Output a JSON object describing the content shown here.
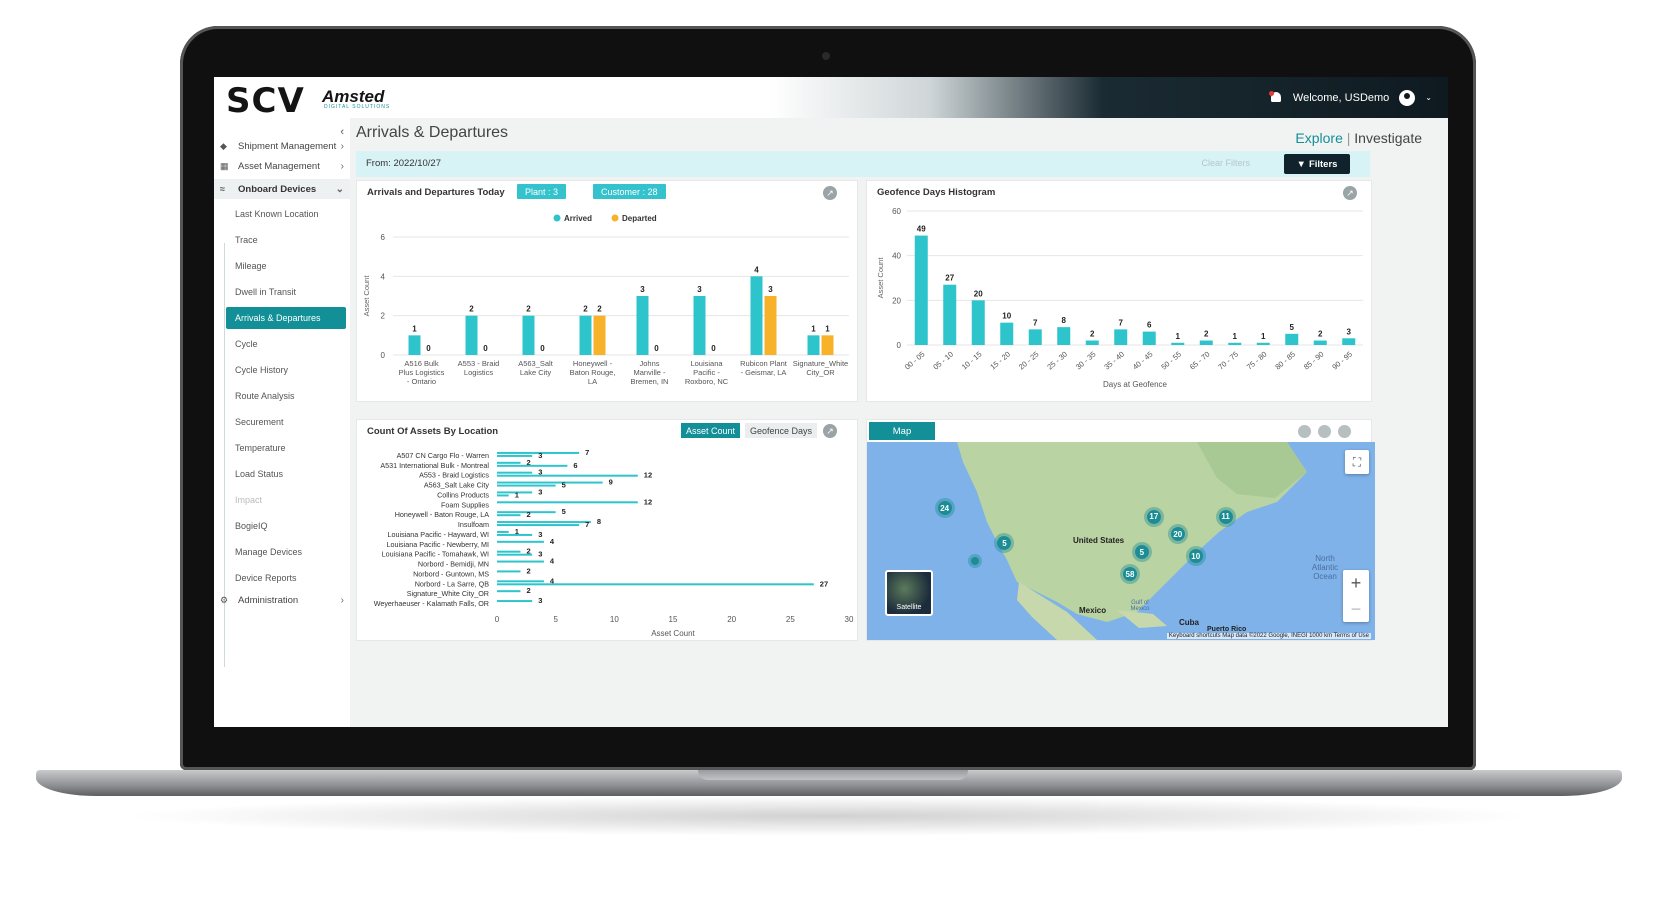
{
  "header": {
    "logo_scv": "SCV",
    "logo_amsted": "Amsted",
    "logo_amsted_sub": "DIGITAL SOLUTIONS",
    "welcome": "Welcome, USDemo"
  },
  "sidebar": {
    "items": [
      {
        "label": "Shipment Management",
        "icon": "tags-icon"
      },
      {
        "label": "Asset Management",
        "icon": "asset-icon"
      },
      {
        "label": "Onboard Devices",
        "icon": "wifi-icon"
      },
      {
        "label": "Administration",
        "icon": "gear-icon"
      }
    ],
    "sub_items": [
      "Last Known Location",
      "Trace",
      "Mileage",
      "Dwell in Transit",
      "Arrivals & Departures",
      "Cycle",
      "Cycle History",
      "Route Analysis",
      "Securement",
      "Temperature",
      "Load Status",
      "Impact",
      "BogieIQ",
      "Manage Devices",
      "Device Reports"
    ],
    "active": "Arrivals & Departures"
  },
  "page": {
    "title": "Arrivals & Departures",
    "explore": "Explore",
    "investigate": "Investigate",
    "from": "From: 2022/10/27",
    "clear_filters": "Clear Filters",
    "filters": "Filters"
  },
  "arrivals_card": {
    "title": "Arrivals and Departures Today",
    "pill_plant": "Plant : 3",
    "pill_customer": "Customer : 28",
    "legend_arrived": "Arrived",
    "legend_departed": "Departed",
    "ylabel": "Asset Count"
  },
  "histogram_card": {
    "title": "Geofence Days Histogram",
    "ylabel": "Asset Count",
    "xlabel": "Days at Geofence"
  },
  "location_card": {
    "title": "Count Of Assets By Location",
    "toggle_on": "Asset Count",
    "toggle_off": "Geofence Days",
    "xlabel": "Asset Count"
  },
  "map_card": {
    "tab": "Map",
    "satellite": "Satellite",
    "labels": {
      "us": "United States",
      "mexico": "Mexico",
      "cuba": "Cuba",
      "atlantic": "North Atlantic Ocean",
      "gulf": "Gulf of Mexico",
      "puerto_rico": "Puerto Rico"
    },
    "attribution": "Keyboard shortcuts   Map data ©2022 Google, INEGI   1000 km   Terms of Use",
    "clusters": [
      {
        "label": "24",
        "lon": -122,
        "lat": 45
      },
      {
        "label": "17",
        "lon": -87,
        "lat": 43
      },
      {
        "label": "11",
        "lon": -75,
        "lat": 43
      },
      {
        "label": "20",
        "lon": -83,
        "lat": 39
      },
      {
        "label": "5",
        "lon": -112,
        "lat": 37
      },
      {
        "label": "5",
        "lon": -89,
        "lat": 35
      },
      {
        "label": "10",
        "lon": -80,
        "lat": 34
      },
      {
        "label": "58",
        "lon": -91,
        "lat": 30
      },
      {
        "label": "",
        "lon": -117,
        "lat": 33
      }
    ]
  },
  "chart_data": [
    {
      "type": "bar",
      "title": "Arrivals and Departures Today",
      "categories": [
        "A516 Bulk Plus Logistics - Ontario",
        "A553 - Braid Logistics",
        "A563_Salt Lake City",
        "Honeywell - Baton Rouge, LA",
        "Johns Manville - Bremen, IN",
        "Louisiana Pacific - Roxboro, NC",
        "Rubicon Plant - Geismar, LA",
        "Signature_White City_OR"
      ],
      "category_lines": [
        [
          "A516 Bulk",
          "Plus Logistics",
          "- Ontario"
        ],
        [
          "A553 - Braid",
          "Logistics"
        ],
        [
          "A563_Salt",
          "Lake City"
        ],
        [
          "Honeywell -",
          "Baton Rouge,",
          "LA"
        ],
        [
          "Johns",
          "Manville -",
          "Bremen, IN"
        ],
        [
          "Louisiana",
          "Pacific -",
          "Roxboro, NC"
        ],
        [
          "Rubicon Plant",
          "- Geismar, LA"
        ],
        [
          "Signature_White",
          "City_OR"
        ]
      ],
      "series": [
        {
          "name": "Arrived",
          "values": [
            1,
            2,
            2,
            2,
            3,
            3,
            4,
            1
          ],
          "color": "#2ec4cc"
        },
        {
          "name": "Departed",
          "values": [
            0,
            0,
            0,
            2,
            0,
            0,
            3,
            1
          ],
          "color": "#f8b22a"
        }
      ],
      "ylabel": "Asset Count",
      "yticks": [
        0,
        2,
        4,
        6
      ],
      "ylim": [
        0,
        6
      ],
      "legend": "top-center"
    },
    {
      "type": "bar",
      "title": "Geofence Days Histogram",
      "categories": [
        "00 - 05",
        "05 - 10",
        "10 - 15",
        "15 - 20",
        "20 - 25",
        "25 - 30",
        "30 - 35",
        "35 - 40",
        "40 - 45",
        "50 - 55",
        "65 - 70",
        "70 - 75",
        "75 - 80",
        "80 - 85",
        "85 - 90",
        "90 - 95"
      ],
      "values": [
        49,
        27,
        20,
        10,
        7,
        8,
        2,
        7,
        6,
        1,
        2,
        1,
        1,
        5,
        2,
        3
      ],
      "color": "#2ec4cc",
      "ylabel": "Asset Count",
      "xlabel": "Days at Geofence",
      "yticks": [
        0,
        20,
        40,
        60
      ],
      "ylim": [
        0,
        60
      ]
    },
    {
      "type": "bar",
      "orientation": "horizontal",
      "title": "Count Of Assets By Location",
      "categories": [
        "A507 CN Cargo Flo - Warren",
        "A531 International Bulk - Montreal",
        "A553 - Braid Logistics",
        "A563_Salt Lake City",
        "Collins Products",
        "Foam Supplies",
        "Honeywell - Baton Rouge, LA",
        "Insulfoam",
        "Louisiana Pacific - Hayward, WI",
        "Louisiana Pacific - Newberry, MI",
        "Louisiana Pacific - Tomahawk, WI",
        "Norbord - Bemidji, MN",
        "Norbord - Guntown, MS",
        "Norbord - La Sarre, QB",
        "Signature_White City_OR",
        "Weyerhaeuser - Kalamath Falls, OR"
      ],
      "series": [
        {
          "name": "s1",
          "values": [
            7,
            2,
            3,
            9,
            3,
            12,
            5,
            8,
            1,
            4,
            2,
            4,
            2,
            4,
            2,
            3
          ]
        },
        {
          "name": "s2",
          "values": [
            3,
            6,
            12,
            5,
            1,
            null,
            2,
            7,
            3,
            null,
            3,
            null,
            null,
            27,
            null,
            null
          ]
        }
      ],
      "color": "#2ec4cc",
      "xlabel": "Asset Count",
      "xticks": [
        0,
        5,
        10,
        15,
        20,
        25,
        30
      ],
      "xlim": [
        0,
        30
      ]
    }
  ]
}
